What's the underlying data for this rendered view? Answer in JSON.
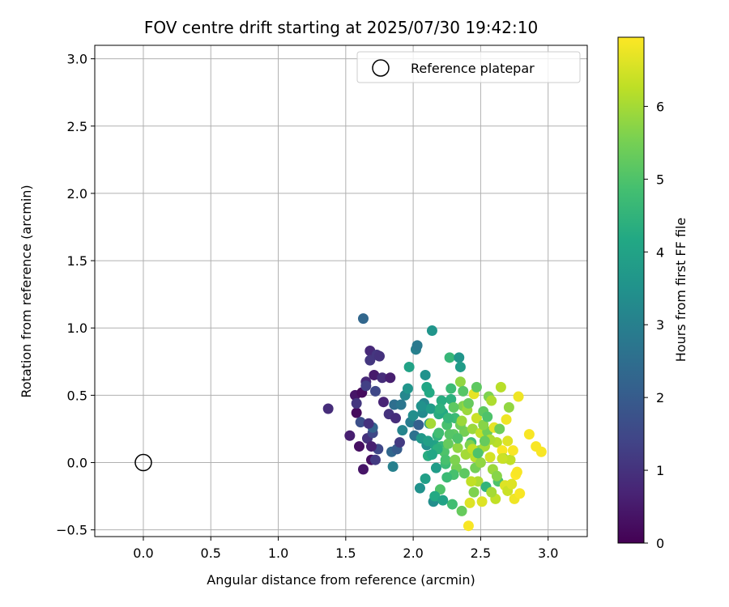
{
  "chart_data": {
    "type": "scatter",
    "title": "FOV centre drift starting at 2025/07/30 19:42:10",
    "xlabel": "Angular distance from reference (arcmin)",
    "ylabel": "Rotation from reference (arcmin)",
    "xlim": [
      -0.36,
      3.29
    ],
    "ylim": [
      -0.55,
      3.1
    ],
    "xticks": [
      "0.0",
      "0.5",
      "1.0",
      "1.5",
      "2.0",
      "2.5",
      "3.0"
    ],
    "yticks": [
      "−0.5",
      "0.0",
      "0.5",
      "1.0",
      "1.5",
      "2.0",
      "2.5",
      "3.0"
    ],
    "grid": true,
    "legend": {
      "placement": "top-right",
      "entries": [
        "Reference platepar"
      ]
    },
    "reference_point": {
      "x": 0.0,
      "y": 0.0,
      "label": "Reference platepar"
    },
    "colorbar": {
      "label": "Hours from first FF file",
      "range": [
        0,
        6.95
      ],
      "ticks": [
        "0",
        "1",
        "2",
        "3",
        "4",
        "5",
        "6"
      ],
      "colormap": "viridis"
    },
    "points": [
      [
        1.37,
        0.4,
        0.9
      ],
      [
        1.53,
        0.2,
        0.6
      ],
      [
        1.57,
        0.5,
        0.4
      ],
      [
        1.58,
        0.37,
        0.2
      ],
      [
        1.6,
        0.12,
        0.3
      ],
      [
        1.62,
        0.52,
        0.2
      ],
      [
        1.63,
        1.07,
        2.3
      ],
      [
        1.63,
        -0.05,
        0.4
      ],
      [
        1.65,
        0.6,
        0.8
      ],
      [
        1.66,
        0.18,
        1.0
      ],
      [
        1.68,
        0.83,
        0.8
      ],
      [
        1.68,
        0.76,
        1.1
      ],
      [
        1.69,
        0.02,
        0.3
      ],
      [
        1.7,
        0.22,
        1.5
      ],
      [
        1.71,
        0.65,
        0.5
      ],
      [
        1.72,
        0.53,
        1.5
      ],
      [
        1.73,
        0.8,
        1.1
      ],
      [
        1.74,
        0.1,
        1.5
      ],
      [
        1.75,
        0.79,
        1.0
      ],
      [
        1.77,
        0.63,
        0.9
      ],
      [
        1.72,
        0.02,
        1.2
      ],
      [
        1.58,
        0.44,
        1.1
      ],
      [
        1.61,
        0.3,
        1.7
      ],
      [
        1.65,
        0.57,
        1.3
      ],
      [
        1.7,
        0.26,
        2.2
      ],
      [
        1.69,
        0.12,
        0.6
      ],
      [
        1.67,
        0.29,
        1.0
      ],
      [
        1.78,
        0.45,
        0.7
      ],
      [
        1.82,
        0.36,
        1.0
      ],
      [
        1.83,
        0.63,
        0.6
      ],
      [
        1.84,
        0.08,
        2.3
      ],
      [
        1.85,
        -0.03,
        3.0
      ],
      [
        1.86,
        0.43,
        2.5
      ],
      [
        1.87,
        0.33,
        0.9
      ],
      [
        1.88,
        0.1,
        2.0
      ],
      [
        1.9,
        0.15,
        1.2
      ],
      [
        1.91,
        0.43,
        2.7
      ],
      [
        1.92,
        0.24,
        3.1
      ],
      [
        1.94,
        0.5,
        3.2
      ],
      [
        1.96,
        0.55,
        3.6
      ],
      [
        1.97,
        0.71,
        4.0
      ],
      [
        1.98,
        0.3,
        2.9
      ],
      [
        2.0,
        0.35,
        3.4
      ],
      [
        2.01,
        0.2,
        2.6
      ],
      [
        2.02,
        0.84,
        3.0
      ],
      [
        2.03,
        0.87,
        2.8
      ],
      [
        2.04,
        0.28,
        2.1
      ],
      [
        2.05,
        -0.19,
        3.5
      ],
      [
        2.06,
        0.18,
        3.7
      ],
      [
        2.07,
        0.37,
        3.3
      ],
      [
        2.08,
        0.44,
        3.2
      ],
      [
        2.09,
        0.65,
        3.5
      ],
      [
        2.1,
        0.13,
        3.4
      ],
      [
        2.11,
        0.05,
        4.3
      ],
      [
        2.12,
        0.29,
        3.6
      ],
      [
        2.12,
        0.52,
        4.2
      ],
      [
        2.13,
        0.4,
        3.8
      ],
      [
        2.14,
        0.98,
        3.6
      ],
      [
        2.15,
        -0.29,
        3.4
      ],
      [
        2.16,
        0.13,
        4.0
      ],
      [
        2.17,
        -0.04,
        3.8
      ],
      [
        2.18,
        0.2,
        4.5
      ],
      [
        2.19,
        0.36,
        4.3
      ],
      [
        2.2,
        -0.2,
        5.0
      ],
      [
        2.21,
        0.12,
        4.6
      ],
      [
        2.22,
        0.37,
        4.2
      ],
      [
        2.23,
        0.08,
        5.0
      ],
      [
        2.24,
        -0.01,
        4.7
      ],
      [
        2.25,
        0.28,
        4.9
      ],
      [
        2.26,
        0.14,
        5.3
      ],
      [
        2.27,
        0.78,
        4.6
      ],
      [
        2.28,
        0.47,
        4.4
      ],
      [
        2.29,
        -0.31,
        4.8
      ],
      [
        2.3,
        0.21,
        5.2
      ],
      [
        2.31,
        0.33,
        4.7
      ],
      [
        2.32,
        -0.04,
        5.5
      ],
      [
        2.33,
        0.11,
        5.8
      ],
      [
        2.34,
        0.78,
        3.6
      ],
      [
        2.35,
        0.71,
        3.8
      ],
      [
        2.35,
        0.6,
        5.8
      ],
      [
        2.36,
        -0.36,
        5.3
      ],
      [
        2.37,
        0.42,
        5.6
      ],
      [
        2.38,
        0.23,
        5.5
      ],
      [
        2.39,
        0.06,
        6.0
      ],
      [
        2.4,
        0.43,
        5.8
      ],
      [
        2.41,
        -0.47,
        6.9
      ],
      [
        2.42,
        -0.3,
        6.6
      ],
      [
        2.43,
        0.15,
        4.8
      ],
      [
        2.44,
        0.25,
        5.9
      ],
      [
        2.45,
        0.51,
        6.7
      ],
      [
        2.46,
        0.04,
        6.2
      ],
      [
        2.47,
        0.33,
        6.4
      ],
      [
        2.48,
        -0.14,
        6.1
      ],
      [
        2.49,
        0.09,
        5.7
      ],
      [
        2.5,
        0.22,
        6.3
      ],
      [
        2.51,
        -0.29,
        6.6
      ],
      [
        2.52,
        0.38,
        5.2
      ],
      [
        2.53,
        0.12,
        6.0
      ],
      [
        2.54,
        -0.18,
        4.5
      ],
      [
        2.55,
        0.23,
        5.4
      ],
      [
        2.56,
        0.49,
        5.6
      ],
      [
        2.57,
        0.04,
        6.5
      ],
      [
        2.58,
        0.46,
        6.1
      ],
      [
        2.59,
        -0.05,
        5.9
      ],
      [
        2.6,
        0.26,
        6.7
      ],
      [
        2.61,
        -0.27,
        6.3
      ],
      [
        2.62,
        0.15,
        6.2
      ],
      [
        2.63,
        -0.14,
        5.0
      ],
      [
        2.64,
        0.25,
        5.4
      ],
      [
        2.65,
        0.56,
        6.2
      ],
      [
        2.66,
        0.09,
        6.9
      ],
      [
        2.67,
        0.03,
        6.0
      ],
      [
        2.68,
        -0.17,
        6.6
      ],
      [
        2.69,
        0.32,
        6.8
      ],
      [
        2.7,
        -0.21,
        6.4
      ],
      [
        2.71,
        0.41,
        5.8
      ],
      [
        2.72,
        0.02,
        6.3
      ],
      [
        2.73,
        -0.16,
        6.6
      ],
      [
        2.74,
        0.09,
        6.9
      ],
      [
        2.75,
        -0.27,
        6.8
      ],
      [
        2.76,
        -0.09,
        7.0
      ],
      [
        2.77,
        -0.07,
        6.9
      ],
      [
        2.78,
        0.49,
        6.8
      ],
      [
        2.79,
        -0.23,
        6.9
      ],
      [
        2.86,
        0.21,
        6.9
      ],
      [
        2.91,
        0.12,
        6.9
      ],
      [
        2.95,
        0.08,
        6.9
      ],
      [
        2.28,
        0.55,
        4.7
      ],
      [
        2.3,
        0.41,
        5.2
      ],
      [
        2.27,
        0.21,
        5.1
      ],
      [
        2.35,
        0.28,
        5.4
      ],
      [
        2.38,
        -0.08,
        5.2
      ],
      [
        2.42,
        0.13,
        5.6
      ],
      [
        2.24,
        0.02,
        4.9
      ],
      [
        2.4,
        0.39,
        5.9
      ],
      [
        2.46,
        -0.04,
        5.5
      ],
      [
        2.52,
        0.28,
        5.7
      ],
      [
        2.18,
        0.1,
        4.4
      ],
      [
        2.13,
        0.29,
        6.0
      ],
      [
        2.21,
        0.46,
        4.3
      ],
      [
        2.33,
        0.18,
        5.0
      ],
      [
        2.44,
        0.1,
        6.3
      ],
      [
        2.5,
        0.0,
        5.8
      ],
      [
        2.57,
        0.17,
        6.1
      ],
      [
        2.09,
        -0.12,
        3.9
      ],
      [
        2.1,
        0.56,
        4.1
      ],
      [
        2.16,
        -0.25,
        4.2
      ],
      [
        2.22,
        -0.28,
        4.0
      ],
      [
        2.3,
        -0.09,
        4.9
      ],
      [
        2.37,
        0.53,
        5.1
      ],
      [
        2.41,
        0.44,
        5.3
      ],
      [
        2.45,
        -0.22,
        5.6
      ],
      [
        2.48,
        0.07,
        5.0
      ],
      [
        2.53,
        0.16,
        5.3
      ],
      [
        2.58,
        -0.22,
        6.0
      ],
      [
        2.62,
        -0.1,
        5.7
      ],
      [
        2.66,
        0.03,
        6.4
      ],
      [
        2.7,
        0.16,
        6.6
      ],
      [
        2.26,
        0.33,
        4.6
      ],
      [
        2.19,
        0.22,
        4.8
      ],
      [
        2.31,
        0.02,
        5.6
      ],
      [
        2.36,
        0.31,
        5.9
      ],
      [
        2.43,
        -0.14,
        6.3
      ],
      [
        2.47,
        0.56,
        5.2
      ],
      [
        2.55,
        0.34,
        5.0
      ],
      [
        2.06,
        0.42,
        3.5
      ],
      [
        2.11,
        0.16,
        3.9
      ],
      [
        2.14,
        0.06,
        4.1
      ],
      [
        2.2,
        0.4,
        4.4
      ],
      [
        2.25,
        -0.11,
        4.7
      ]
    ]
  }
}
